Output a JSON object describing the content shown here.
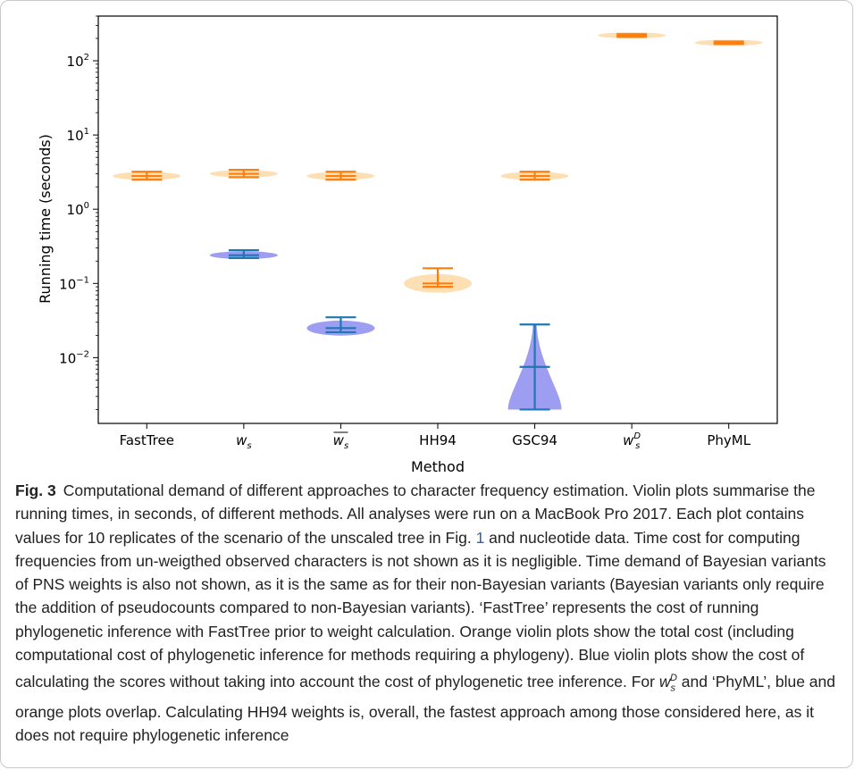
{
  "chart_data": {
    "type": "violin",
    "xlabel": "Method",
    "ylabel": "Running time (seconds)",
    "yscale": "log",
    "ylim": [
      0.0013,
      400
    ],
    "y_ticks": [
      {
        "value": 0.01,
        "base": "10",
        "exp": "−2"
      },
      {
        "value": 0.1,
        "base": "10",
        "exp": "−1"
      },
      {
        "value": 1,
        "base": "10",
        "exp": "0"
      },
      {
        "value": 10,
        "base": "10",
        "exp": "1"
      },
      {
        "value": 100,
        "base": "10",
        "exp": "2"
      }
    ],
    "categories": [
      {
        "label": "FastTree",
        "italic": false
      },
      {
        "label": "w",
        "sub": "s",
        "italic": true
      },
      {
        "label": "w",
        "sub": "s",
        "italic": true,
        "overline": true
      },
      {
        "label": "HH94",
        "italic": false
      },
      {
        "label": "GSC94",
        "italic": false
      },
      {
        "label": "w",
        "sub": "s",
        "sup": "D",
        "italic": true
      },
      {
        "label": "PhyML",
        "italic": false
      }
    ],
    "colors": {
      "orange": "#ff7f0e",
      "orange_fill": "#fdd9a6",
      "blue": "#1f77b4",
      "blue_fill": "#8c8cf0"
    },
    "series": [
      {
        "name": "Orange violin plots (total cost)",
        "color": "orange",
        "data": [
          {
            "category": 0,
            "min": 2.5,
            "median": 2.8,
            "max": 3.2
          },
          {
            "category": 1,
            "min": 2.7,
            "median": 3.0,
            "max": 3.4
          },
          {
            "category": 2,
            "min": 2.5,
            "median": 2.8,
            "max": 3.2
          },
          {
            "category": 3,
            "min": 0.09,
            "median": 0.1,
            "max": 0.16
          },
          {
            "category": 4,
            "min": 2.5,
            "median": 2.8,
            "max": 3.2
          },
          {
            "category": 5,
            "min": 210,
            "median": 220,
            "max": 228
          },
          {
            "category": 6,
            "min": 168,
            "median": 175,
            "max": 182
          }
        ]
      },
      {
        "name": "Blue violin plots (scores only)",
        "color": "blue",
        "data": [
          {
            "category": 1,
            "min": 0.22,
            "median": 0.24,
            "max": 0.28
          },
          {
            "category": 2,
            "min": 0.022,
            "median": 0.025,
            "max": 0.035
          },
          {
            "category": 4,
            "min": 0.002,
            "median": 0.0075,
            "max": 0.028
          }
        ]
      }
    ]
  },
  "caption": {
    "label": "Fig. 3",
    "part1": "Computational demand of different approaches to character frequency estimation. Violin plots summarise the running times, in seconds, of different methods. All analyses were run on a MacBook Pro 2017. Each plot contains values for 10 replicates of the scenario of the unscaled tree in Fig. ",
    "ref": "1",
    "part2": " and nucleotide data. Time cost for computing frequencies from un-weigthed observed characters is not shown as it is negligible. Time demand of Bayesian variants of PNS weights is also not shown, as it is the same as for their non-Bayesian variants (Bayesian variants only require the addition of pseudocounts compared to non-Bayesian variants). ‘FastTree’ represents the cost of running phylogenetic inference with FastTree prior to weight calculation. Orange violin plots show the total cost (including computational cost of phylogenetic inference for methods requiring a phylogeny). Blue violin plots show the cost of calculating the scores without taking into account the cost of phylogenetic tree inference. For ",
    "symbol_base": "w",
    "symbol_sub": "s",
    "symbol_sup": "D",
    "part3": " and ‘PhyML’, blue and orange plots overlap. Calculating HH94 weights is, overall, the fastest approach among those considered here, as it does not require phylogenetic inference"
  }
}
